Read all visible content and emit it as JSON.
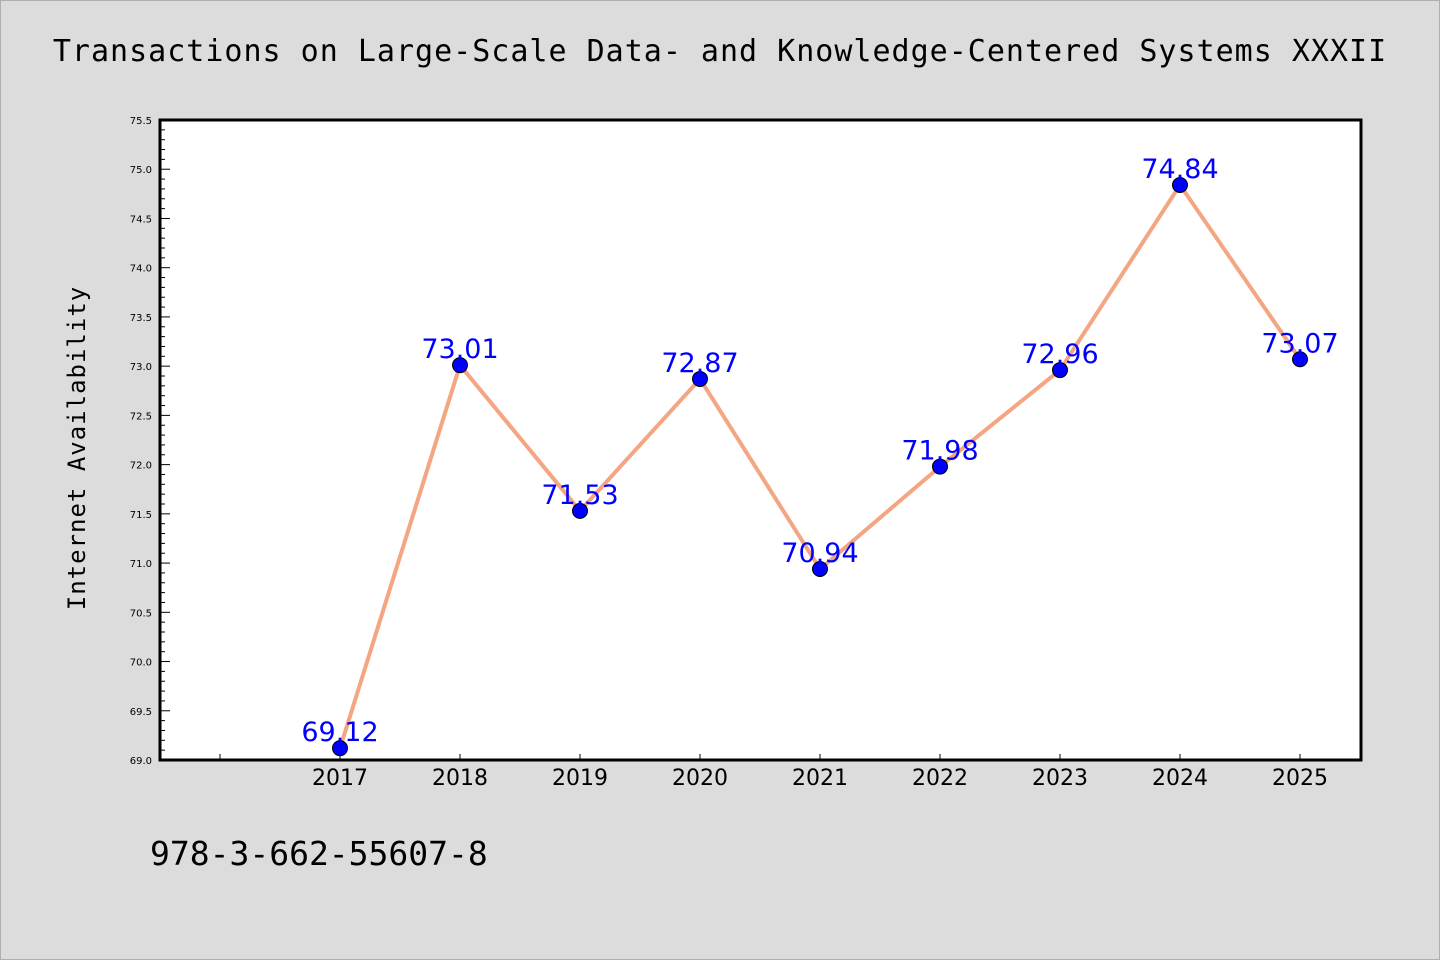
{
  "chart_data": {
    "type": "line",
    "title": "Transactions on Large-Scale Data- and Knowledge-Centered Systems XXXII",
    "xlabel": "",
    "ylabel": "Internet Availability",
    "categories": [
      "2017",
      "2018",
      "2019",
      "2020",
      "2021",
      "2022",
      "2023",
      "2024",
      "2025"
    ],
    "series": [
      {
        "values": [
          69.12,
          73.01,
          71.53,
          72.87,
          70.94,
          71.98,
          72.96,
          74.84,
          73.07
        ],
        "labels": [
          "69.12",
          "73.01",
          "71.53",
          "72.87",
          "70.94",
          "71.98",
          "72.96",
          "74.84",
          "73.07"
        ]
      }
    ],
    "ylim": [
      69.0,
      75.5
    ],
    "yticks": [
      "69.0",
      "69.5",
      "70.0",
      "70.5",
      "71.0",
      "71.5",
      "72.0",
      "72.5",
      "73.0",
      "73.5",
      "74.0",
      "74.5",
      "75.0",
      "75.5"
    ],
    "grid": false,
    "line_color": "#f4a582",
    "marker_color": "#0000ff",
    "label_color": "#0000ff"
  },
  "footer": {
    "isbn": "978-3-662-55607-8"
  }
}
